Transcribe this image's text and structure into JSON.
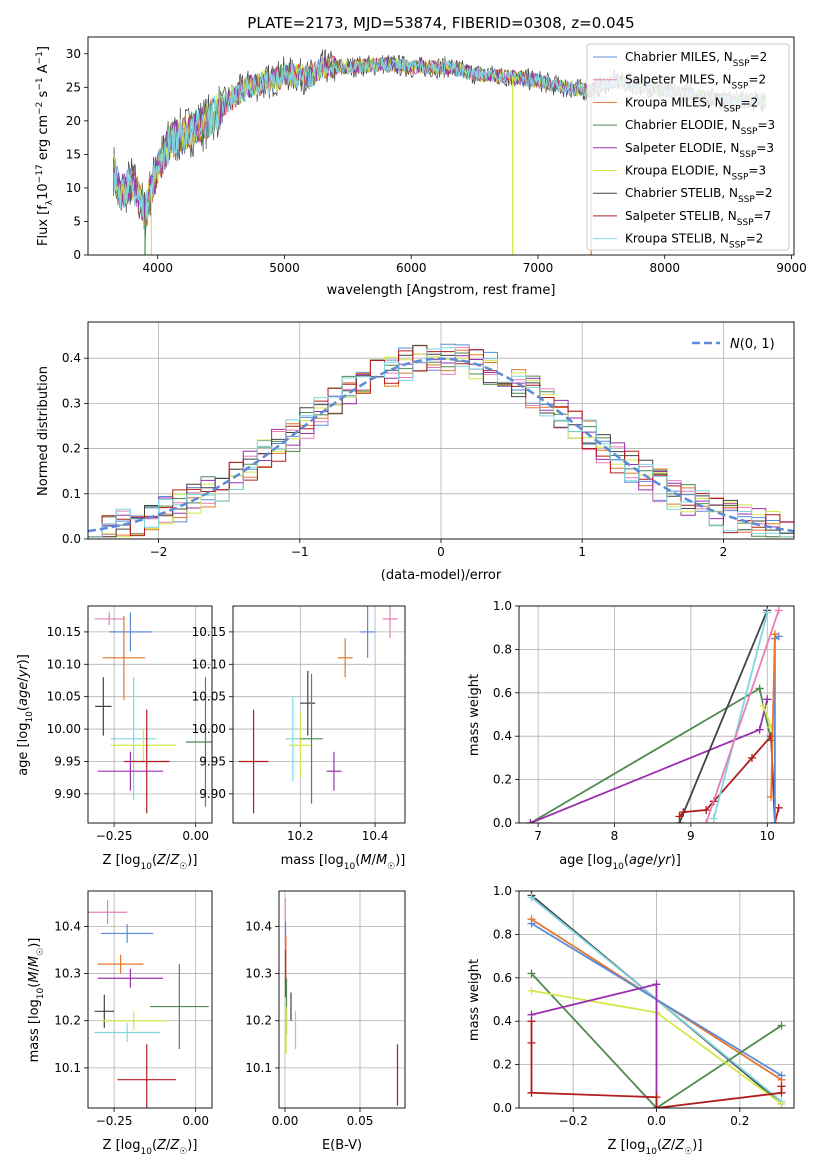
{
  "colors": {
    "chabrier_miles": "#5b8bd8",
    "salpeter_miles": "#e67fb8",
    "kroupa_miles": "#e6762b",
    "chabrier_elodie": "#4f8a4f",
    "salpeter_elodie": "#9b2fae",
    "kroupa_elodie": "#d4e84a",
    "chabrier_stelib": "#444444",
    "salpeter_stelib": "#b21d1d",
    "kroupa_stelib": "#7fd6e0",
    "gaussian": "#5b8bd8"
  },
  "chart_data": [
    {
      "id": "spectrum",
      "type": "line",
      "title": "PLATE=2173, MJD=53874, FIBERID=0308, z=0.045",
      "xlabel": "wavelength [Angstrom, rest frame]",
      "ylabel": "Flux [f_λ 10^-17 erg cm^-2 s^-1 A^-1]",
      "xlim": [
        3450,
        9020
      ],
      "ylim": [
        0,
        32.5
      ],
      "xticks": [
        4000,
        5000,
        6000,
        7000,
        8000,
        9000
      ],
      "yticks": [
        0,
        5,
        10,
        15,
        20,
        25,
        30
      ],
      "legend_position": "top-right",
      "grid": false,
      "continuum": [
        [
          3650,
          13
        ],
        [
          3700,
          9
        ],
        [
          3750,
          10
        ],
        [
          3800,
          11
        ],
        [
          3900,
          6
        ],
        [
          3950,
          10
        ],
        [
          4000,
          13
        ],
        [
          4100,
          17
        ],
        [
          4200,
          18
        ],
        [
          4300,
          19
        ],
        [
          4400,
          20
        ],
        [
          4500,
          22
        ],
        [
          4700,
          25
        ],
        [
          4900,
          26
        ],
        [
          5000,
          27
        ],
        [
          5200,
          26.5
        ],
        [
          5300,
          28
        ],
        [
          5500,
          28
        ],
        [
          5800,
          28.5
        ],
        [
          6000,
          28
        ],
        [
          6300,
          28
        ],
        [
          6500,
          27
        ],
        [
          6800,
          26.5
        ],
        [
          7000,
          26
        ],
        [
          7200,
          25
        ],
        [
          7400,
          24.5
        ],
        [
          7600,
          26
        ],
        [
          8000,
          24.5
        ],
        [
          8500,
          23
        ],
        [
          8800,
          23
        ]
      ],
      "series_legend": [
        {
          "prefix": "Chabrier MILES, N",
          "sub": "SSP",
          "suffix": "=2"
        },
        {
          "prefix": "Salpeter MILES, N",
          "sub": "SSP",
          "suffix": "=2"
        },
        {
          "prefix": "Kroupa MILES, N",
          "sub": "SSP",
          "suffix": "=2"
        },
        {
          "prefix": "Chabrier ELODIE, N",
          "sub": "SSP",
          "suffix": "=3"
        },
        {
          "prefix": "Salpeter ELODIE, N",
          "sub": "SSP",
          "suffix": "=3"
        },
        {
          "prefix": "Kroupa ELODIE, N",
          "sub": "SSP",
          "suffix": "=3"
        },
        {
          "prefix": "Chabrier STELIB, N",
          "sub": "SSP",
          "suffix": "=2"
        },
        {
          "prefix": "Salpeter STELIB, N",
          "sub": "SSP",
          "suffix": "=7"
        },
        {
          "prefix": "Kroupa STELIB, N",
          "sub": "SSP",
          "suffix": "=2"
        }
      ],
      "vertical_spikes": [
        [
          3900,
          "#4f8a4f"
        ],
        [
          3950,
          "#d4e84a"
        ],
        [
          6800,
          "#d4e84a"
        ],
        [
          7420,
          "#e6762b"
        ]
      ]
    },
    {
      "id": "residuals",
      "type": "step-histogram",
      "xlabel": "(data-model)/error",
      "ylabel": "Normed distribution",
      "xlim": [
        -2.5,
        2.5
      ],
      "ylim": [
        0,
        0.48
      ],
      "xticks": [
        -2,
        -1,
        0,
        1,
        2
      ],
      "yticks": [
        0.0,
        0.1,
        0.2,
        0.3,
        0.4
      ],
      "grid": true,
      "legend_position": "top-right",
      "legend_label": "N(0,1)"
    },
    {
      "id": "age-vs-z",
      "type": "errorbar",
      "xlabel": "Z [log10(Z/Z☉)]",
      "ylabel": "age  [log10(age/yr)]",
      "xlim": [
        -0.33,
        0.05
      ],
      "ylim": [
        9.855,
        10.19
      ],
      "xticks": [
        -0.25,
        0.0
      ],
      "xticklabels": [
        "−0.25",
        "0.00"
      ],
      "yticks": [
        9.9,
        9.95,
        10.0,
        10.05,
        10.1,
        10.15
      ],
      "grid": true,
      "points": [
        {
          "key": "salpeter_miles",
          "x": -0.265,
          "y": 10.17,
          "ex": 0.045,
          "ey": 0.01
        },
        {
          "key": "chabrier_miles",
          "x": -0.2,
          "y": 10.15,
          "ex": 0.065,
          "ey": 0.03
        },
        {
          "key": "kroupa_miles",
          "x": -0.22,
          "y": 10.11,
          "ex": 0.065,
          "ey": 0.065
        },
        {
          "key": "chabrier_stelib",
          "x": -0.283,
          "y": 10.035,
          "ex": 0.025,
          "ey": 0.045
        },
        {
          "key": "kroupa_stelib",
          "x": -0.19,
          "y": 9.985,
          "ex": 0.07,
          "ey": 0.095
        },
        {
          "key": "kroupa_elodie",
          "x": -0.16,
          "y": 9.975,
          "ex": 0.1,
          "ey": 0.025
        },
        {
          "key": "chabrier_elodie",
          "x": 0.03,
          "y": 9.98,
          "ex": 0.06,
          "ey": 0.1
        },
        {
          "key": "salpeter_stelib",
          "x": -0.15,
          "y": 9.95,
          "ex": 0.07,
          "ey": 0.08
        },
        {
          "key": "salpeter_elodie",
          "x": -0.2,
          "y": 9.935,
          "ex": 0.1,
          "ey": 0.03
        }
      ]
    },
    {
      "id": "age-vs-mass",
      "type": "errorbar",
      "xlabel": "mass [log10(M/M☉)]",
      "xlim": [
        10.02,
        10.48
      ],
      "ylim": [
        9.855,
        10.19
      ],
      "xticks": [
        10.2,
        10.4
      ],
      "xticklabels": [
        "10.2",
        "10.4"
      ],
      "yticks": [
        9.9,
        9.95,
        10.0,
        10.05,
        10.1,
        10.15
      ],
      "grid": true,
      "points": [
        {
          "key": "salpeter_miles",
          "x": 10.44,
          "y": 10.17,
          "ex": 0.02,
          "ey": 0.03
        },
        {
          "key": "chabrier_miles",
          "x": 10.38,
          "y": 10.15,
          "ex": 0.02,
          "ey": 0.04
        },
        {
          "key": "kroupa_miles",
          "x": 10.32,
          "y": 10.11,
          "ex": 0.02,
          "ey": 0.03
        },
        {
          "key": "chabrier_stelib",
          "x": 10.22,
          "y": 10.04,
          "ex": 0.02,
          "ey": 0.05
        },
        {
          "key": "kroupa_stelib",
          "x": 10.18,
          "y": 9.985,
          "ex": 0.02,
          "ey": 0.065
        },
        {
          "key": "kroupa_elodie",
          "x": 10.2,
          "y": 9.975,
          "ex": 0.03,
          "ey": 0.05
        },
        {
          "key": "chabrier_elodie",
          "x": 10.23,
          "y": 9.985,
          "ex": 0.03,
          "ey": 0.1
        },
        {
          "key": "salpeter_stelib",
          "x": 10.075,
          "y": 9.95,
          "ex": 0.04,
          "ey": 0.08
        },
        {
          "key": "salpeter_elodie",
          "x": 10.29,
          "y": 9.935,
          "ex": 0.02,
          "ey": 0.03
        }
      ]
    },
    {
      "id": "mw-vs-age",
      "type": "line",
      "xlabel": "age  [log10(age/yr)]",
      "ylabel": "mass weight",
      "xlim": [
        6.75,
        10.35
      ],
      "ylim": [
        0.0,
        1.0
      ],
      "xticks": [
        7,
        8,
        9,
        10
      ],
      "yticks": [
        0.0,
        0.2,
        0.4,
        0.6,
        0.8,
        1.0
      ],
      "grid": true,
      "series": [
        {
          "key": "chabrier_elodie",
          "x": [
            6.9,
            9.9,
            10.05
          ],
          "y": [
            0.0,
            0.62,
            0.38
          ]
        },
        {
          "key": "salpeter_elodie",
          "x": [
            6.9,
            9.9,
            10.0
          ],
          "y": [
            0.0,
            0.43,
            0.57
          ]
        },
        {
          "key": "kroupa_elodie",
          "x": [
            9.95,
            10.05
          ],
          "y": [
            0.54,
            0.44
          ]
        },
        {
          "key": "chabrier_stelib",
          "x": [
            8.85,
            10.0
          ],
          "y": [
            0.0,
            0.98
          ]
        },
        {
          "key": "salpeter_stelib",
          "x": [
            8.85,
            8.9,
            9.2,
            9.3,
            9.8,
            10.05,
            10.1,
            10.15
          ],
          "y": [
            0.03,
            0.05,
            0.06,
            0.1,
            0.3,
            0.4,
            0.0,
            0.07
          ]
        },
        {
          "key": "kroupa_stelib",
          "x": [
            9.3,
            10.0
          ],
          "y": [
            0.02,
            0.97
          ]
        },
        {
          "key": "salpeter_miles",
          "x": [
            9.2,
            10.15
          ],
          "y": [
            0.0,
            0.98
          ]
        },
        {
          "key": "chabrier_miles",
          "x": [
            10.1,
            10.1,
            10.15
          ],
          "y": [
            0.0,
            0.85,
            0.86
          ]
        },
        {
          "key": "kroupa_miles",
          "x": [
            10.05,
            10.1
          ],
          "y": [
            0.12,
            0.87
          ]
        }
      ]
    },
    {
      "id": "mass-vs-z",
      "type": "errorbar",
      "xlabel": "Z [log10(Z/Z☉)]",
      "ylabel": "mass [log10(M/M☉)]",
      "xlim": [
        -0.33,
        0.05
      ],
      "ylim": [
        10.015,
        10.475
      ],
      "xticks": [
        -0.25,
        0.0
      ],
      "xticklabels": [
        "−0.25",
        "0.00"
      ],
      "yticks": [
        10.1,
        10.2,
        10.3,
        10.4
      ],
      "grid": true,
      "points": [
        {
          "key": "salpeter_miles",
          "x": -0.27,
          "y": 10.43,
          "ex": 0.06,
          "ey": 0.025
        },
        {
          "key": "chabrier_miles",
          "x": -0.21,
          "y": 10.385,
          "ex": 0.08,
          "ey": 0.02
        },
        {
          "key": "kroupa_miles",
          "x": -0.23,
          "y": 10.32,
          "ex": 0.07,
          "ey": 0.02
        },
        {
          "key": "salpeter_elodie",
          "x": -0.2,
          "y": 10.29,
          "ex": 0.1,
          "ey": 0.02
        },
        {
          "key": "chabrier_elodie",
          "x": -0.05,
          "y": 10.23,
          "ex": 0.09,
          "ey": 0.09
        },
        {
          "key": "chabrier_stelib",
          "x": -0.28,
          "y": 10.22,
          "ex": 0.03,
          "ey": 0.035
        },
        {
          "key": "kroupa_elodie",
          "x": -0.19,
          "y": 10.2,
          "ex": 0.1,
          "ey": 0.02
        },
        {
          "key": "kroupa_stelib",
          "x": -0.21,
          "y": 10.175,
          "ex": 0.1,
          "ey": 0.02
        },
        {
          "key": "salpeter_stelib",
          "x": -0.15,
          "y": 10.075,
          "ex": 0.09,
          "ey": 0.075
        }
      ]
    },
    {
      "id": "mass-vs-ebv",
      "type": "errorbar",
      "xlabel": "E(B-V)",
      "xlim": [
        -0.004,
        0.08
      ],
      "ylim": [
        10.015,
        10.475
      ],
      "xticks": [
        0.0,
        0.05
      ],
      "xticklabels": [
        "0.00",
        "0.05"
      ],
      "yticks": [
        10.1,
        10.2,
        10.3,
        10.4
      ],
      "grid": true,
      "points": [
        {
          "key": "salpeter_miles",
          "x": 0.0002,
          "y": 10.4,
          "ex": 0.0,
          "ey": 0.06
        },
        {
          "key": "chabrier_miles",
          "x": 0.0004,
          "y": 10.37,
          "ex": 0.0,
          "ey": 0.04
        },
        {
          "key": "kroupa_miles",
          "x": 0.0006,
          "y": 10.33,
          "ex": 0.0,
          "ey": 0.05
        },
        {
          "key": "salpeter_elodie",
          "x": 0.0003,
          "y": 10.3,
          "ex": 0.0,
          "ey": 0.05
        },
        {
          "key": "chabrier_elodie",
          "x": 0.001,
          "y": 10.23,
          "ex": 0.0,
          "ey": 0.06
        },
        {
          "key": "chabrier_stelib",
          "x": 0.004,
          "y": 10.23,
          "ex": 0.0,
          "ey": 0.03
        },
        {
          "key": "kroupa_elodie",
          "x": 0.0008,
          "y": 10.18,
          "ex": 0.0,
          "ey": 0.05
        },
        {
          "key": "kroupa_stelib",
          "x": 0.007,
          "y": 10.18,
          "ex": 0.0,
          "ey": 0.04
        },
        {
          "key": "salpeter_stelib",
          "x": 0.075,
          "y": 10.085,
          "ex": 0.0,
          "ey": 0.065
        }
      ]
    },
    {
      "id": "mw-vs-z",
      "type": "line",
      "xlabel": "Z [log10(Z/Z☉)]",
      "ylabel": "mass weight",
      "xlim": [
        -0.33,
        0.33
      ],
      "ylim": [
        0.0,
        1.0
      ],
      "xticks": [
        -0.2,
        0.0,
        0.2
      ],
      "xticklabels": [
        "−0.2",
        "0.0",
        "0.2"
      ],
      "yticks": [
        0.0,
        0.2,
        0.4,
        0.6,
        0.8,
        1.0
      ],
      "grid": true,
      "series": [
        {
          "key": "chabrier_stelib",
          "x": [
            -0.3,
            0.3
          ],
          "y": [
            0.98,
            0.02
          ]
        },
        {
          "key": "kroupa_stelib",
          "x": [
            -0.3,
            0.3
          ],
          "y": [
            0.97,
            0.03
          ]
        },
        {
          "key": "kroupa_miles",
          "x": [
            -0.3,
            0.3
          ],
          "y": [
            0.87,
            0.13
          ]
        },
        {
          "key": "chabrier_miles",
          "x": [
            -0.3,
            0.3
          ],
          "y": [
            0.85,
            0.15
          ]
        },
        {
          "key": "chabrier_elodie",
          "x": [
            -0.3,
            0.0,
            0.3
          ],
          "y": [
            0.62,
            0.0,
            0.38
          ]
        },
        {
          "key": "kroupa_elodie",
          "x": [
            -0.3,
            0.0,
            0.3
          ],
          "y": [
            0.54,
            0.44,
            0.02
          ]
        },
        {
          "key": "salpeter_elodie",
          "x": [
            -0.3,
            0.0,
            0.0
          ],
          "y": [
            0.43,
            0.57,
            0.0
          ]
        },
        {
          "key": "salpeter_stelib",
          "x": [
            -0.3,
            -0.3,
            -0.3,
            0.0,
            0.0,
            0.3,
            0.3
          ],
          "y": [
            0.4,
            0.3,
            0.07,
            0.05,
            0.0,
            0.07,
            0.1
          ]
        }
      ]
    }
  ]
}
